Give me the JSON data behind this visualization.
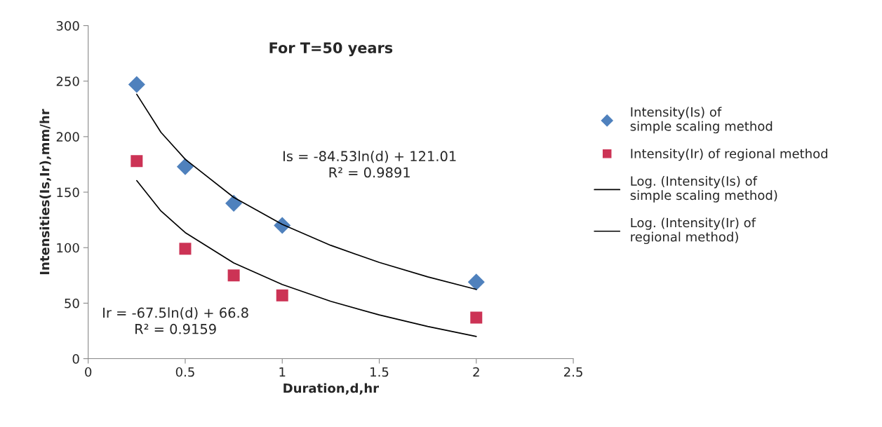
{
  "chart_data": {
    "type": "scatter",
    "title": "For T=50 years",
    "xlabel": "Duration,d,hr",
    "ylabel": "Intensities(Is,Ir),mm/hr",
    "xlim": [
      0,
      2.5
    ],
    "xticks": [
      0,
      0.5,
      1,
      1.5,
      2,
      2.5
    ],
    "ylim": [
      0,
      300
    ],
    "yticks": [
      0,
      50,
      100,
      150,
      200,
      250,
      300
    ],
    "grid": false,
    "legend": "right",
    "series": [
      {
        "name": "Intensity(Is) of simple scaling method",
        "marker": "diamond",
        "color": "#4f81bd",
        "x": [
          0.25,
          0.5,
          0.75,
          1,
          2
        ],
        "values": [
          247,
          173,
          140,
          120,
          69
        ]
      },
      {
        "name": "Intensity(Ir) of regional method",
        "marker": "square",
        "color": "#cc3355",
        "x": [
          0.25,
          0.5,
          0.75,
          1,
          2
        ],
        "values": [
          178,
          99,
          75,
          57,
          37
        ]
      },
      {
        "name": "Log. (Intensity(Is) of simple scaling method)",
        "type": "line",
        "marker": "none",
        "line_style": "solid",
        "color": "#000000",
        "x": [
          0.25,
          0.375,
          0.5,
          0.75,
          1,
          1.25,
          1.5,
          1.75,
          2
        ],
        "values": [
          238.2,
          203.9,
          179.6,
          145.3,
          121.0,
          102.1,
          86.7,
          73.7,
          62.4
        ]
      },
      {
        "name": "Log. (Intensity(Ir) of regional method)",
        "type": "line",
        "marker": "none",
        "line_style": "solid",
        "color": "#000000",
        "x": [
          0.25,
          0.375,
          0.5,
          0.75,
          1,
          1.25,
          1.5,
          1.75,
          2
        ],
        "values": [
          160.4,
          133.0,
          113.6,
          86.2,
          66.8,
          51.7,
          39.4,
          29.0,
          20.0
        ]
      }
    ],
    "annotations": [
      "Is = -84.53ln(d) + 121.01\nR² = 0.9891",
      "Ir = -67.5ln(d) + 66.8\nR² = 0.9159"
    ]
  }
}
